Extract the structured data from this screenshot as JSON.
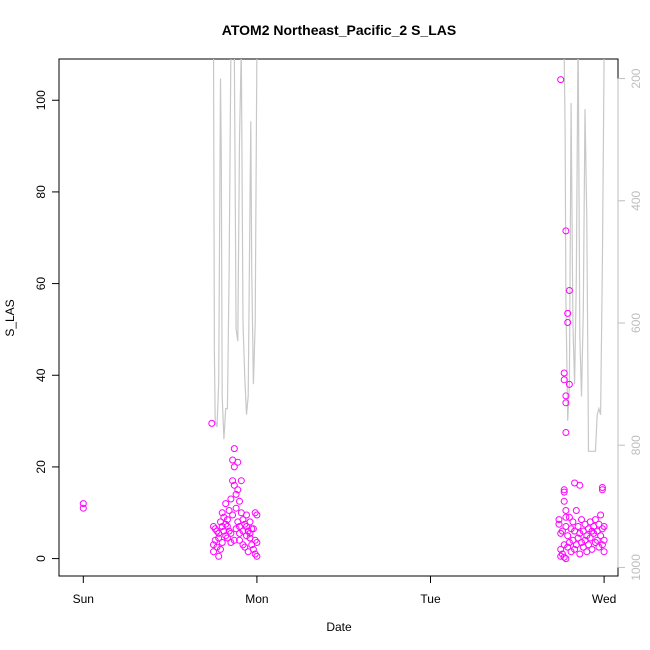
{
  "chart_data": {
    "type": "scatter",
    "title": "ATOM2 Northeast_Pacific_2 S_LAS",
    "xlabel": "Date",
    "ylabel": "S_LAS",
    "x_unit": "days since Sunday 00:00",
    "xlim": [
      -0.14,
      3.08
    ],
    "ylim": [
      -3.8,
      109.0
    ],
    "x_ticks": [
      {
        "value": 0,
        "label": "Sun"
      },
      {
        "value": 1,
        "label": "Mon"
      },
      {
        "value": 2,
        "label": "Tue"
      },
      {
        "value": 3,
        "label": "Wed"
      }
    ],
    "y_ticks": [
      0,
      20,
      40,
      60,
      80,
      100
    ],
    "y2_ticks": [
      200,
      400,
      600,
      800,
      1000
    ],
    "y2lim": [
      1014,
      168
    ],
    "y2_axis_color": "#bebebe",
    "colors": {
      "points_a": "#ff00ff",
      "points_b": "#ff1493",
      "depth_line": "#c8c8c8",
      "frame": "#000000"
    },
    "grid": false,
    "legend": "none",
    "series": [
      {
        "color": "#ff00ff",
        "points": [
          [
            0.0,
            12.0
          ],
          [
            0.0,
            11.0
          ],
          [
            0.74,
            29.5
          ],
          [
            0.75,
            7.0
          ],
          [
            0.75,
            3.0
          ],
          [
            0.75,
            1.5
          ],
          [
            0.76,
            6.5
          ],
          [
            0.76,
            4.0
          ],
          [
            0.77,
            2.5
          ],
          [
            0.78,
            0.5
          ],
          [
            0.78,
            5.5
          ],
          [
            0.79,
            2.0
          ],
          [
            0.79,
            8.0
          ],
          [
            0.8,
            7.0
          ],
          [
            0.8,
            3.5
          ],
          [
            0.8,
            10.0
          ],
          [
            0.81,
            9.0
          ],
          [
            0.81,
            6.0
          ],
          [
            0.82,
            5.0
          ],
          [
            0.82,
            12.0
          ],
          [
            0.82,
            7.5
          ],
          [
            0.83,
            8.5
          ],
          [
            0.83,
            4.5
          ],
          [
            0.84,
            10.5
          ],
          [
            0.84,
            6.0
          ],
          [
            0.85,
            13.0
          ],
          [
            0.85,
            3.5
          ],
          [
            0.86,
            21.5
          ],
          [
            0.86,
            9.5
          ],
          [
            0.86,
            17.0
          ],
          [
            0.87,
            24.0
          ],
          [
            0.87,
            16.0
          ],
          [
            0.87,
            20.0
          ],
          [
            0.88,
            14.0
          ],
          [
            0.88,
            6.5
          ],
          [
            0.88,
            11.0
          ],
          [
            0.89,
            21.0
          ],
          [
            0.89,
            15.0
          ],
          [
            0.89,
            8.0
          ],
          [
            0.9,
            7.0
          ],
          [
            0.9,
            4.0
          ],
          [
            0.9,
            12.5
          ],
          [
            0.91,
            17.0
          ],
          [
            0.91,
            10.0
          ],
          [
            0.92,
            6.0
          ],
          [
            0.92,
            3.0
          ],
          [
            0.93,
            7.5
          ],
          [
            0.93,
            2.5
          ],
          [
            0.94,
            5.0
          ],
          [
            0.94,
            9.5
          ],
          [
            0.95,
            6.0
          ],
          [
            0.95,
            1.5
          ],
          [
            0.96,
            4.5
          ],
          [
            0.96,
            8.0
          ],
          [
            0.97,
            3.0
          ],
          [
            0.97,
            6.5
          ],
          [
            0.98,
            2.0
          ],
          [
            0.99,
            10.0
          ],
          [
            0.99,
            4.0
          ],
          [
            0.99,
            1.0
          ],
          [
            1.0,
            9.5
          ],
          [
            1.0,
            3.5
          ],
          [
            1.0,
            0.5
          ],
          [
            0.77,
            6.0
          ],
          [
            0.78,
            4.5
          ],
          [
            0.83,
            7.0
          ],
          [
            0.85,
            5.5
          ],
          [
            0.87,
            4.0
          ],
          [
            0.9,
            5.5
          ],
          [
            0.92,
            8.5
          ],
          [
            0.94,
            7.0
          ],
          [
            0.96,
            5.5
          ],
          [
            0.98,
            6.5
          ],
          [
            2.75,
            104.5
          ],
          [
            2.78,
            71.5
          ],
          [
            2.8,
            58.5
          ],
          [
            2.79,
            53.5
          ],
          [
            2.79,
            51.5
          ],
          [
            2.8,
            38.0
          ],
          [
            2.77,
            40.5
          ],
          [
            2.77,
            39.0
          ],
          [
            2.78,
            35.5
          ],
          [
            2.78,
            34.0
          ],
          [
            2.78,
            27.5
          ],
          [
            2.77,
            15.0
          ],
          [
            2.77,
            14.5
          ],
          [
            2.77,
            12.5
          ],
          [
            2.78,
            10.5
          ],
          [
            2.78,
            9.0
          ],
          [
            2.83,
            16.5
          ],
          [
            2.86,
            16.0
          ],
          [
            2.99,
            15.5
          ],
          [
            2.99,
            15.0
          ],
          [
            2.74,
            8.5
          ],
          [
            2.74,
            7.5
          ],
          [
            2.75,
            5.5
          ],
          [
            2.75,
            2.0
          ],
          [
            2.75,
            0.5
          ],
          [
            2.76,
            6.0
          ],
          [
            2.76,
            1.0
          ],
          [
            2.77,
            3.0
          ],
          [
            2.77,
            0.3
          ],
          [
            2.78,
            7.0
          ],
          [
            2.78,
            0.0
          ],
          [
            2.79,
            2.5
          ],
          [
            2.79,
            5.0
          ],
          [
            2.8,
            9.0
          ],
          [
            2.8,
            3.5
          ],
          [
            2.81,
            6.5
          ],
          [
            2.81,
            1.5
          ],
          [
            2.82,
            4.0
          ],
          [
            2.82,
            8.0
          ],
          [
            2.83,
            2.0
          ],
          [
            2.83,
            6.0
          ],
          [
            2.84,
            3.0
          ],
          [
            2.84,
            10.5
          ],
          [
            2.85,
            7.0
          ],
          [
            2.85,
            4.5
          ],
          [
            2.86,
            1.0
          ],
          [
            2.86,
            5.5
          ],
          [
            2.87,
            3.5
          ],
          [
            2.87,
            8.5
          ],
          [
            2.88,
            6.0
          ],
          [
            2.88,
            2.5
          ],
          [
            2.89,
            4.0
          ],
          [
            2.89,
            7.5
          ],
          [
            2.9,
            5.0
          ],
          [
            2.9,
            1.5
          ],
          [
            2.91,
            6.5
          ],
          [
            2.91,
            3.0
          ],
          [
            2.92,
            8.0
          ],
          [
            2.92,
            4.5
          ],
          [
            2.93,
            6.0
          ],
          [
            2.93,
            2.0
          ],
          [
            2.94,
            7.0
          ],
          [
            2.94,
            5.5
          ],
          [
            2.95,
            3.5
          ],
          [
            2.95,
            8.5
          ],
          [
            2.96,
            6.0
          ],
          [
            2.96,
            4.0
          ],
          [
            2.97,
            7.5
          ],
          [
            2.97,
            2.5
          ],
          [
            2.98,
            5.0
          ],
          [
            2.98,
            9.5
          ],
          [
            2.99,
            3.0
          ],
          [
            2.99,
            6.5
          ],
          [
            3.0,
            1.5
          ],
          [
            3.0,
            4.0
          ],
          [
            3.0,
            7.0
          ]
        ]
      }
    ],
    "depth_line": {
      "color": "#c8c8c8",
      "axis": "y2",
      "segments": [
        [
          [
            0.75,
            140
          ],
          [
            0.755,
            650
          ],
          [
            0.76,
            760
          ],
          [
            0.77,
            770
          ],
          [
            0.78,
            700
          ],
          [
            0.79,
            200
          ],
          [
            0.795,
            330
          ],
          [
            0.8,
            720
          ],
          [
            0.81,
            790
          ],
          [
            0.82,
            740
          ],
          [
            0.83,
            740
          ],
          [
            0.84,
            520
          ],
          [
            0.85,
            150
          ],
          [
            0.87,
            150
          ],
          [
            0.88,
            610
          ],
          [
            0.89,
            630
          ],
          [
            0.9,
            300
          ],
          [
            0.91,
            150
          ],
          [
            0.92,
            600
          ],
          [
            0.93,
            690
          ],
          [
            0.94,
            750
          ],
          [
            0.95,
            720
          ],
          [
            0.96,
            400
          ],
          [
            0.965,
            270
          ],
          [
            0.97,
            510
          ],
          [
            0.98,
            700
          ],
          [
            0.99,
            600
          ],
          [
            1.0,
            150
          ]
        ],
        [
          [
            2.74,
            165
          ],
          [
            2.77,
            165
          ],
          [
            2.775,
            280
          ],
          [
            2.78,
            560
          ],
          [
            2.79,
            760
          ],
          [
            2.8,
            700
          ],
          [
            2.81,
            240
          ],
          [
            2.82,
            600
          ],
          [
            2.83,
            700
          ],
          [
            2.84,
            530
          ],
          [
            2.85,
            120
          ],
          [
            2.86,
            620
          ],
          [
            2.87,
            720
          ],
          [
            2.88,
            580
          ],
          [
            2.89,
            250
          ],
          [
            2.9,
            430
          ],
          [
            2.91,
            810
          ],
          [
            2.95,
            810
          ],
          [
            2.96,
            750
          ],
          [
            2.97,
            740
          ],
          [
            2.98,
            750
          ],
          [
            2.99,
            500
          ],
          [
            3.0,
            165
          ]
        ]
      ]
    }
  }
}
